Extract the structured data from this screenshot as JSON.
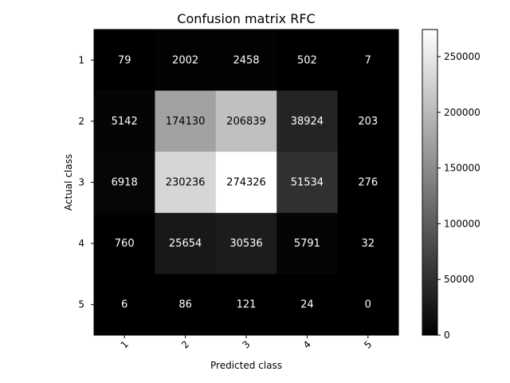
{
  "chart_data": {
    "type": "heatmap",
    "title": "Confusion matrix RFC",
    "xlabel": "Predicted class",
    "ylabel": "Actual class",
    "x_categories": [
      "1",
      "2",
      "3",
      "4",
      "5"
    ],
    "y_categories": [
      "1",
      "2",
      "3",
      "4",
      "5"
    ],
    "values": [
      [
        79,
        2002,
        2458,
        502,
        7
      ],
      [
        5142,
        174130,
        206839,
        38924,
        203
      ],
      [
        6918,
        230236,
        274326,
        51534,
        276
      ],
      [
        760,
        25654,
        30536,
        5791,
        32
      ],
      [
        6,
        86,
        121,
        24,
        0
      ]
    ],
    "colormap": "gray",
    "vmin": 0,
    "vmax": 274326,
    "colorbar_ticks": [
      0,
      50000,
      100000,
      150000,
      200000,
      250000
    ],
    "colorbar_tick_labels": [
      "0",
      "50000",
      "100000",
      "150000",
      "200000",
      "250000"
    ],
    "text_color_light": "#ffffff",
    "text_color_dark": "#000000",
    "grid": false
  }
}
